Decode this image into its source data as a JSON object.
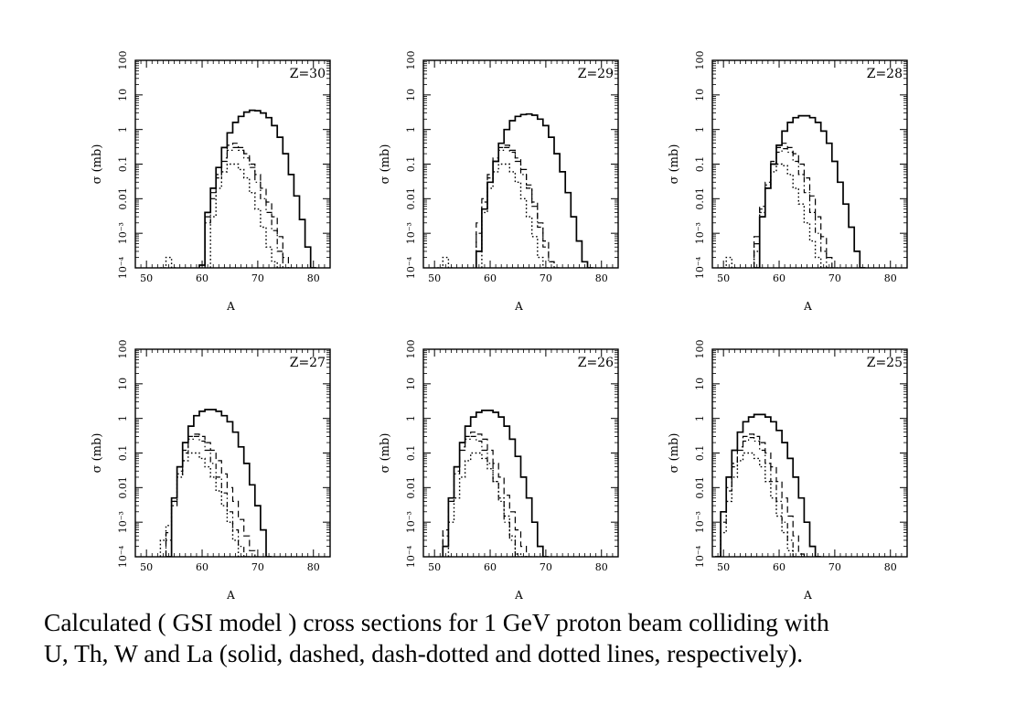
{
  "caption": {
    "line1": "Calculated ( GSI model ) cross sections for 1 GeV proton beam colliding with",
    "line2": "U, Th, W and La (solid, dashed, dash-dotted and dotted lines, respectively)."
  },
  "chart_data": [
    {
      "type": "line",
      "label": "Z=30",
      "xlabel": "A",
      "ylabel": "σ (mb)",
      "xlim": [
        48,
        83
      ],
      "ylim": [
        0.0001,
        100
      ],
      "yscale": "log",
      "xticks": [
        50,
        60,
        70,
        80
      ],
      "yticks": [
        "10⁻⁴",
        "10⁻³",
        "0.01",
        "0.1",
        "1",
        "10",
        "100"
      ],
      "series": [
        {
          "style": "solid",
          "x": [
            60,
            61,
            62,
            63,
            64,
            65,
            66,
            67,
            68,
            69,
            70,
            71,
            72,
            73,
            74,
            75,
            76,
            77,
            78,
            79,
            80
          ],
          "y": [
            0.00012,
            0.004,
            0.02,
            0.08,
            0.3,
            0.8,
            1.6,
            2.4,
            3.2,
            3.6,
            3.5,
            3.0,
            2.2,
            1.3,
            0.6,
            0.2,
            0.05,
            0.012,
            0.0025,
            0.0004,
            0.0001
          ]
        },
        {
          "style": "dashed",
          "x": [
            61,
            62,
            63,
            64,
            65,
            66,
            67,
            68,
            69,
            70,
            71,
            72,
            73,
            74,
            75,
            76
          ],
          "y": [
            0.003,
            0.015,
            0.05,
            0.15,
            0.35,
            0.4,
            0.3,
            0.2,
            0.1,
            0.05,
            0.02,
            0.008,
            0.003,
            0.0008,
            0.0002,
            0.0001
          ]
        },
        {
          "style": "dash-dotted",
          "x": [
            61,
            62,
            63,
            64,
            65,
            66,
            67,
            68,
            69,
            70,
            71,
            72,
            73,
            74,
            75
          ],
          "y": [
            0.002,
            0.01,
            0.04,
            0.12,
            0.25,
            0.3,
            0.25,
            0.15,
            0.08,
            0.03,
            0.01,
            0.004,
            0.0012,
            0.0003,
            0.0001
          ]
        },
        {
          "style": "dotted",
          "x": [
            53,
            54,
            55,
            62,
            63,
            64,
            65,
            66,
            67,
            68,
            69,
            70,
            71,
            72,
            73,
            74
          ],
          "y": [
            0.0001,
            0.0002,
            0.0001,
            0.003,
            0.02,
            0.06,
            0.1,
            0.1,
            0.07,
            0.04,
            0.015,
            0.005,
            0.0015,
            0.0004,
            0.00015,
            0.0001
          ]
        }
      ]
    },
    {
      "type": "line",
      "label": "Z=29",
      "xlabel": "A",
      "ylabel": "σ (mb)",
      "xlim": [
        48,
        83
      ],
      "ylim": [
        0.0001,
        100
      ],
      "yscale": "log",
      "xticks": [
        50,
        60,
        70,
        80
      ],
      "yticks": [
        "10⁻⁴",
        "10⁻³",
        "0.01",
        "0.1",
        "1",
        "10",
        "100"
      ],
      "series": [
        {
          "style": "solid",
          "x": [
            58,
            59,
            60,
            61,
            62,
            63,
            64,
            65,
            66,
            67,
            68,
            69,
            70,
            71,
            72,
            73,
            74,
            75,
            76,
            77,
            78
          ],
          "y": [
            0.0003,
            0.005,
            0.03,
            0.12,
            0.4,
            1.0,
            1.8,
            2.4,
            2.7,
            2.8,
            2.6,
            2.0,
            1.3,
            0.6,
            0.2,
            0.06,
            0.015,
            0.003,
            0.0006,
            0.00015,
            0.0001
          ]
        },
        {
          "style": "dashed",
          "x": [
            58,
            59,
            60,
            61,
            62,
            63,
            64,
            65,
            66,
            67,
            68,
            69,
            70,
            71,
            72
          ],
          "y": [
            0.002,
            0.01,
            0.05,
            0.15,
            0.3,
            0.35,
            0.25,
            0.15,
            0.07,
            0.025,
            0.008,
            0.002,
            0.0006,
            0.00015,
            0.0001
          ]
        },
        {
          "style": "dash-dotted",
          "x": [
            58,
            59,
            60,
            61,
            62,
            63,
            64,
            65,
            66,
            67,
            68,
            69,
            70,
            71,
            72
          ],
          "y": [
            0.001,
            0.008,
            0.04,
            0.12,
            0.25,
            0.3,
            0.22,
            0.12,
            0.05,
            0.02,
            0.006,
            0.0015,
            0.0004,
            0.00015,
            0.0001
          ]
        },
        {
          "style": "dotted",
          "x": [
            51,
            52,
            53,
            59,
            60,
            61,
            62,
            63,
            64,
            65,
            66,
            67,
            68,
            69,
            70,
            71
          ],
          "y": [
            0.0001,
            0.0002,
            0.0001,
            0.004,
            0.02,
            0.06,
            0.1,
            0.1,
            0.06,
            0.03,
            0.01,
            0.003,
            0.0008,
            0.0002,
            0.0001,
            0.0001
          ]
        }
      ]
    },
    {
      "type": "line",
      "label": "Z=28",
      "xlabel": "A",
      "ylabel": "σ (mb)",
      "xlim": [
        48,
        83
      ],
      "ylim": [
        0.0001,
        100
      ],
      "yscale": "log",
      "xticks": [
        50,
        60,
        70,
        80
      ],
      "yticks": [
        "10⁻⁴",
        "10⁻³",
        "0.01",
        "0.1",
        "1",
        "10",
        "100"
      ],
      "series": [
        {
          "style": "solid",
          "x": [
            56,
            57,
            58,
            59,
            60,
            61,
            62,
            63,
            64,
            65,
            66,
            67,
            68,
            69,
            70,
            71,
            72,
            73,
            74,
            75
          ],
          "y": [
            0.0001,
            0.003,
            0.02,
            0.1,
            0.35,
            0.9,
            1.6,
            2.2,
            2.5,
            2.5,
            2.2,
            1.6,
            0.9,
            0.4,
            0.12,
            0.03,
            0.007,
            0.0015,
            0.0003,
            0.0001
          ]
        },
        {
          "style": "dashed",
          "x": [
            56,
            57,
            58,
            59,
            60,
            61,
            62,
            63,
            64,
            65,
            66,
            67,
            68,
            69,
            70
          ],
          "y": [
            0.0008,
            0.006,
            0.03,
            0.12,
            0.3,
            0.4,
            0.3,
            0.2,
            0.1,
            0.04,
            0.012,
            0.003,
            0.0008,
            0.0002,
            0.0001
          ]
        },
        {
          "style": "dash-dotted",
          "x": [
            56,
            57,
            58,
            59,
            60,
            61,
            62,
            63,
            64,
            65,
            66,
            67,
            68,
            69,
            70
          ],
          "y": [
            0.0005,
            0.005,
            0.025,
            0.1,
            0.22,
            0.28,
            0.22,
            0.12,
            0.05,
            0.015,
            0.004,
            0.001,
            0.0003,
            0.0001,
            0.0001
          ]
        },
        {
          "style": "dotted",
          "x": [
            50,
            51,
            52,
            56,
            57,
            58,
            59,
            60,
            61,
            62,
            63,
            64,
            65,
            66,
            67,
            68,
            69
          ],
          "y": [
            0.0001,
            0.0002,
            0.0001,
            0.0003,
            0.004,
            0.02,
            0.06,
            0.1,
            0.09,
            0.05,
            0.02,
            0.007,
            0.002,
            0.0006,
            0.0002,
            0.0001,
            0.0001
          ]
        }
      ]
    },
    {
      "type": "line",
      "label": "Z=27",
      "xlabel": "A",
      "ylabel": "σ (mb)",
      "xlim": [
        48,
        83
      ],
      "ylim": [
        0.0001,
        100
      ],
      "yscale": "log",
      "xticks": [
        50,
        60,
        70,
        80
      ],
      "yticks": [
        "10⁻⁴",
        "10⁻³",
        "0.01",
        "0.1",
        "1",
        "10",
        "100"
      ],
      "series": [
        {
          "style": "solid",
          "x": [
            54,
            55,
            56,
            57,
            58,
            59,
            60,
            61,
            62,
            63,
            64,
            65,
            66,
            67,
            68,
            69,
            70,
            71,
            72
          ],
          "y": [
            0.0001,
            0.005,
            0.04,
            0.2,
            0.6,
            1.2,
            1.6,
            1.8,
            1.8,
            1.6,
            1.2,
            0.8,
            0.4,
            0.15,
            0.05,
            0.012,
            0.003,
            0.0006,
            0.0001
          ]
        },
        {
          "style": "dashed",
          "x": [
            54,
            55,
            56,
            57,
            58,
            59,
            60,
            61,
            62,
            63,
            64,
            65,
            66,
            67,
            68,
            69,
            70
          ],
          "y": [
            0.0005,
            0.004,
            0.03,
            0.12,
            0.3,
            0.35,
            0.3,
            0.2,
            0.12,
            0.06,
            0.025,
            0.01,
            0.004,
            0.0012,
            0.0004,
            0.00015,
            0.0001
          ]
        },
        {
          "style": "dash-dotted",
          "x": [
            54,
            55,
            56,
            57,
            58,
            59,
            60,
            61,
            62,
            63,
            64,
            65,
            66,
            67,
            68
          ],
          "y": [
            0.0003,
            0.003,
            0.025,
            0.1,
            0.25,
            0.3,
            0.22,
            0.12,
            0.05,
            0.02,
            0.007,
            0.002,
            0.0006,
            0.0002,
            0.0001
          ]
        },
        {
          "style": "dotted",
          "x": [
            53,
            54,
            55,
            56,
            57,
            58,
            59,
            60,
            61,
            62,
            63,
            64,
            65,
            66,
            67,
            68
          ],
          "y": [
            0.0003,
            0.0008,
            0.004,
            0.02,
            0.06,
            0.1,
            0.1,
            0.07,
            0.04,
            0.02,
            0.008,
            0.003,
            0.001,
            0.0003,
            0.0001,
            0.0001
          ]
        }
      ]
    },
    {
      "type": "line",
      "label": "Z=26",
      "xlabel": "A",
      "ylabel": "σ (mb)",
      "xlim": [
        48,
        83
      ],
      "ylim": [
        0.0001,
        100
      ],
      "yscale": "log",
      "xticks": [
        50,
        60,
        70,
        80
      ],
      "yticks": [
        "10⁻⁴",
        "10⁻³",
        "0.01",
        "0.1",
        "1",
        "10",
        "100"
      ],
      "series": [
        {
          "style": "solid",
          "x": [
            52,
            53,
            54,
            55,
            56,
            57,
            58,
            59,
            60,
            61,
            62,
            63,
            64,
            65,
            66,
            67,
            68,
            69,
            70
          ],
          "y": [
            0.0002,
            0.005,
            0.04,
            0.2,
            0.6,
            1.1,
            1.5,
            1.7,
            1.7,
            1.5,
            1.1,
            0.6,
            0.25,
            0.08,
            0.02,
            0.005,
            0.001,
            0.0002,
            0.0001
          ]
        },
        {
          "style": "dashed",
          "x": [
            52,
            53,
            54,
            55,
            56,
            57,
            58,
            59,
            60,
            61,
            62,
            63,
            64,
            65,
            66,
            67,
            68
          ],
          "y": [
            0.0006,
            0.005,
            0.03,
            0.15,
            0.3,
            0.4,
            0.35,
            0.25,
            0.12,
            0.05,
            0.02,
            0.006,
            0.002,
            0.0006,
            0.0002,
            0.0001,
            0.0001
          ]
        },
        {
          "style": "dash-dotted",
          "x": [
            52,
            53,
            54,
            55,
            56,
            57,
            58,
            59,
            60,
            61,
            62,
            63,
            64,
            65,
            66
          ],
          "y": [
            0.0004,
            0.004,
            0.025,
            0.12,
            0.25,
            0.3,
            0.22,
            0.12,
            0.05,
            0.015,
            0.004,
            0.001,
            0.0003,
            0.0001,
            0.0001
          ]
        },
        {
          "style": "dotted",
          "x": [
            53,
            54,
            55,
            56,
            57,
            58,
            59,
            60,
            61,
            62,
            63,
            64,
            65,
            66
          ],
          "y": [
            0.001,
            0.005,
            0.02,
            0.06,
            0.1,
            0.1,
            0.07,
            0.035,
            0.015,
            0.005,
            0.0015,
            0.0004,
            0.00012,
            0.0001
          ]
        }
      ]
    },
    {
      "type": "line",
      "label": "Z=25",
      "xlabel": "A",
      "ylabel": "σ (mb)",
      "xlim": [
        48,
        83
      ],
      "ylim": [
        0.0001,
        100
      ],
      "yscale": "log",
      "xticks": [
        50,
        60,
        70,
        80
      ],
      "yticks": [
        "10⁻⁴",
        "10⁻³",
        "0.01",
        "0.1",
        "1",
        "10",
        "100"
      ],
      "series": [
        {
          "style": "solid",
          "x": [
            49,
            50,
            51,
            52,
            53,
            54,
            55,
            56,
            57,
            58,
            59,
            60,
            61,
            62,
            63,
            64,
            65,
            66,
            67
          ],
          "y": [
            0.0001,
            0.002,
            0.02,
            0.12,
            0.4,
            0.8,
            1.1,
            1.3,
            1.3,
            1.1,
            0.8,
            0.45,
            0.2,
            0.07,
            0.02,
            0.005,
            0.001,
            0.0002,
            0.0001
          ]
        },
        {
          "style": "dashed",
          "x": [
            50,
            51,
            52,
            53,
            54,
            55,
            56,
            57,
            58,
            59,
            60,
            61,
            62,
            63,
            64,
            65
          ],
          "y": [
            0.002,
            0.01,
            0.05,
            0.15,
            0.3,
            0.35,
            0.3,
            0.2,
            0.1,
            0.04,
            0.015,
            0.005,
            0.0015,
            0.0004,
            0.00012,
            0.0001
          ]
        },
        {
          "style": "dash-dotted",
          "x": [
            50,
            51,
            52,
            53,
            54,
            55,
            56,
            57,
            58,
            59,
            60,
            61,
            62,
            63,
            64
          ],
          "y": [
            0.001,
            0.008,
            0.04,
            0.12,
            0.22,
            0.28,
            0.22,
            0.12,
            0.05,
            0.015,
            0.004,
            0.001,
            0.0003,
            0.0001,
            0.0001
          ]
        },
        {
          "style": "dotted",
          "x": [
            50,
            51,
            52,
            53,
            54,
            55,
            56,
            57,
            58,
            59,
            60,
            61,
            62,
            63,
            64
          ],
          "y": [
            0.0005,
            0.004,
            0.02,
            0.06,
            0.1,
            0.1,
            0.07,
            0.04,
            0.015,
            0.005,
            0.0015,
            0.0005,
            0.00015,
            0.0001,
            0.0001
          ]
        }
      ]
    }
  ]
}
